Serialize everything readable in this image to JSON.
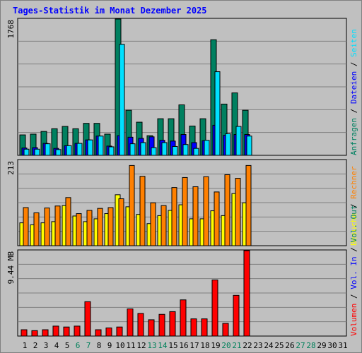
{
  "chart_data": [
    {
      "panel": "top",
      "type": "bar",
      "title": "Tages-Statistik im Monat Dezember 2025",
      "y_tick_label": "1768",
      "ylim": [
        0,
        1768
      ],
      "categories": [
        "1",
        "2",
        "3",
        "4",
        "5",
        "6",
        "7",
        "8",
        "9",
        "10",
        "11",
        "12",
        "13",
        "14",
        "15",
        "16",
        "17",
        "18",
        "19",
        "20",
        "21",
        "22",
        "23",
        "24",
        "25",
        "26",
        "27",
        "28",
        "29",
        "30",
        "31"
      ],
      "weekend_days": [
        "6",
        "7",
        "13",
        "14",
        "20",
        "21",
        "27",
        "28"
      ],
      "series": [
        {
          "name": "Anfragen",
          "color": "#008060",
          "values": [
            265,
            275,
            310,
            345,
            375,
            345,
            415,
            415,
            275,
            1768,
            585,
            430,
            255,
            475,
            475,
            655,
            380,
            475,
            1500,
            665,
            810,
            585,
            null,
            null,
            null,
            null,
            null,
            null,
            null,
            null,
            null
          ]
        },
        {
          "name": "Dateien",
          "color": "#0000ff",
          "values": [
            95,
            100,
            155,
            90,
            125,
            155,
            200,
            250,
            120,
            255,
            235,
            220,
            240,
            195,
            185,
            270,
            165,
            190,
            390,
            260,
            270,
            270,
            null,
            null,
            null,
            null,
            null,
            null,
            null,
            null,
            null
          ]
        },
        {
          "name": "Seiten",
          "color": "#00e0ff",
          "values": [
            80,
            80,
            150,
            75,
            125,
            155,
            200,
            250,
            110,
            1440,
            150,
            165,
            100,
            165,
            115,
            140,
            90,
            195,
            1085,
            280,
            375,
            250,
            null,
            null,
            null,
            null,
            null,
            null,
            null,
            null,
            null
          ]
        }
      ]
    },
    {
      "panel": "middle",
      "type": "bar",
      "y_tick_label": "213",
      "ylim": [
        0,
        213
      ],
      "series": [
        {
          "name": "Besuche",
          "color": "#ffff00",
          "values": [
            57,
            52,
            57,
            60,
            100,
            74,
            60,
            67,
            80,
            127,
            97,
            78,
            55,
            75,
            88,
            102,
            67,
            67,
            87,
            75,
            130,
            107,
            null,
            null,
            null,
            null,
            null,
            null,
            null,
            null,
            null
          ]
        },
        {
          "name": "Rechner",
          "color": "#ff8000",
          "values": [
            95,
            82,
            94,
            99,
            120,
            80,
            88,
            93,
            95,
            117,
            200,
            173,
            107,
            100,
            145,
            170,
            147,
            172,
            134,
            177,
            168,
            200,
            null,
            null,
            null,
            null,
            null,
            null,
            null,
            null,
            null
          ]
        }
      ]
    },
    {
      "panel": "bottom",
      "type": "bar",
      "y_tick_label": "9.44 MB",
      "ylim": [
        0,
        9.44
      ],
      "series": [
        {
          "name": "Volumen",
          "color": "#ff0000",
          "values": [
            0.7,
            0.6,
            0.7,
            1.1,
            1.0,
            1.1,
            3.8,
            0.7,
            0.9,
            1.0,
            3.0,
            2.5,
            1.8,
            2.4,
            2.7,
            4.0,
            1.9,
            1.9,
            6.2,
            1.4,
            4.5,
            9.44,
            null,
            null,
            null,
            null,
            null,
            null,
            null,
            null,
            null
          ]
        }
      ]
    }
  ],
  "legend": {
    "top": [
      {
        "label": "Anfragen",
        "color": "#008060"
      },
      {
        "label": "Dateien",
        "color": "#0000ff"
      },
      {
        "label": "Seiten",
        "color": "#00e0ff"
      }
    ],
    "middle": [
      {
        "label": "Besuche",
        "color": "#ffff00"
      },
      {
        "label": "Rechner",
        "color": "#ff8000"
      }
    ],
    "bottom": [
      {
        "label": "Volumen",
        "color": "#ff0000"
      },
      {
        "label": "Vol. In",
        "color": "#0000ff"
      },
      {
        "label": "Vol. Out",
        "color": "#008060"
      }
    ],
    "separator": "/"
  }
}
